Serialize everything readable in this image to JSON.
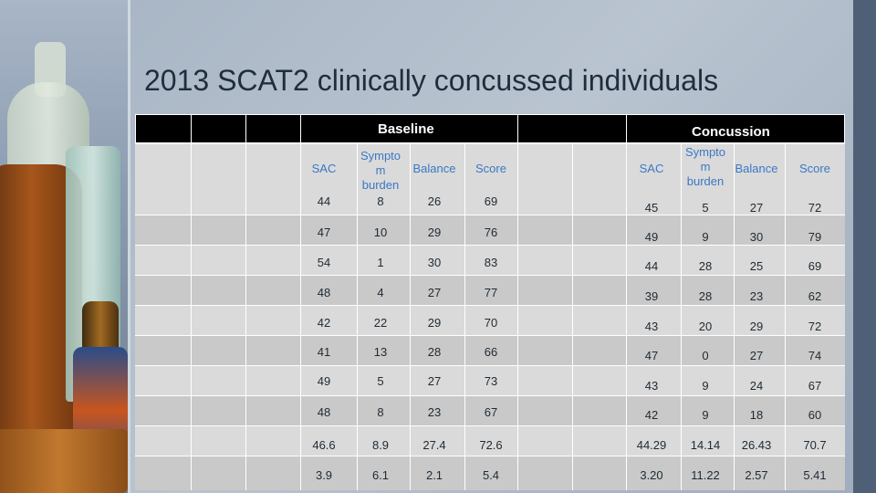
{
  "slide": {
    "title": "2013 SCAT2 clinically concussed individuals"
  },
  "table": {
    "group_headers": {
      "baseline": "Baseline",
      "concussion": "Concussion"
    },
    "column_headers": {
      "baseline": [
        "SAC",
        "Sympto m burden",
        "Balance",
        "Score"
      ],
      "concussion": [
        "SAC",
        "Sympto m burden",
        "Balance",
        "Score"
      ]
    },
    "rows": [
      {
        "baseline": [
          "44",
          "8",
          "26",
          "69"
        ],
        "concussion": [
          "45",
          "5",
          "27",
          "72"
        ]
      },
      {
        "baseline": [
          "47",
          "10",
          "29",
          "76"
        ],
        "concussion": [
          "49",
          "9",
          "30",
          "79"
        ]
      },
      {
        "baseline": [
          "54",
          "1",
          "30",
          "83"
        ],
        "concussion": [
          "44",
          "28",
          "25",
          "69"
        ]
      },
      {
        "baseline": [
          "48",
          "4",
          "27",
          "77"
        ],
        "concussion": [
          "39",
          "28",
          "23",
          "62"
        ]
      },
      {
        "baseline": [
          "42",
          "22",
          "29",
          "70"
        ],
        "concussion": [
          "43",
          "20",
          "29",
          "72"
        ]
      },
      {
        "baseline": [
          "41",
          "13",
          "28",
          "66"
        ],
        "concussion": [
          "47",
          "0",
          "27",
          "74"
        ]
      },
      {
        "baseline": [
          "49",
          "5",
          "27",
          "73"
        ],
        "concussion": [
          "43",
          "9",
          "24",
          "67"
        ]
      },
      {
        "baseline": [
          "48",
          "8",
          "23",
          "67"
        ],
        "concussion": [
          "42",
          "9",
          "18",
          "60"
        ]
      },
      {
        "baseline": [
          "46.6",
          "8.9",
          "27.4",
          "72.6"
        ],
        "concussion": [
          "44.29",
          "14.14",
          "26.43",
          "70.7"
        ]
      },
      {
        "baseline": [
          "3.9",
          "6.1",
          "2.1",
          "5.4"
        ],
        "concussion": [
          "3.20",
          "11.22",
          "2.57",
          "5.41"
        ]
      }
    ]
  }
}
